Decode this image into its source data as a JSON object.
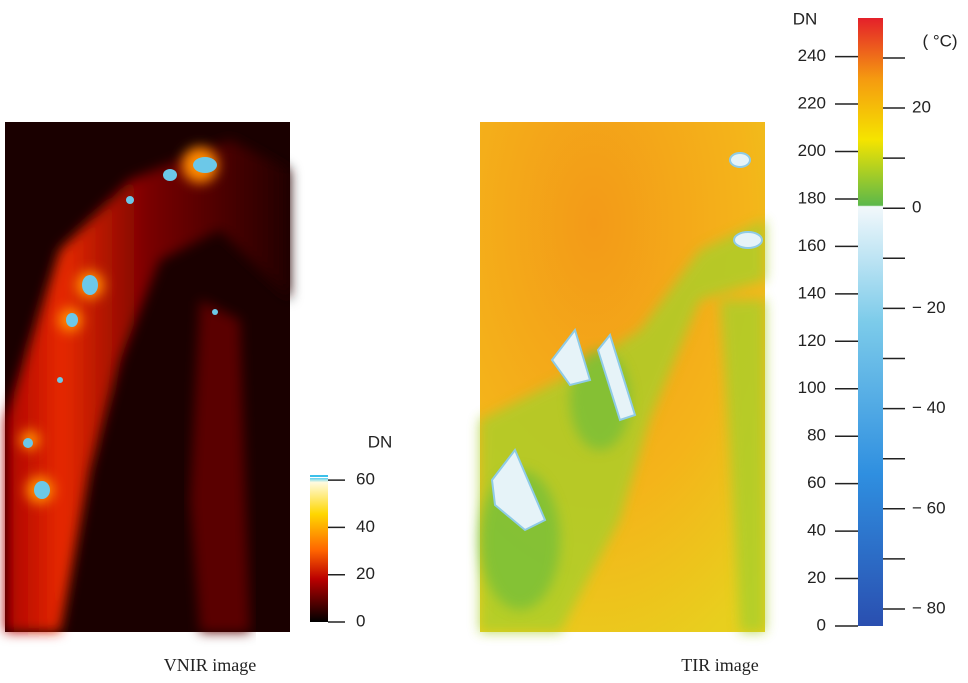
{
  "panels": [
    {
      "caption": "VNIR image",
      "colorbar": {
        "label": "DN",
        "ticks": [
          0,
          20,
          40,
          60
        ]
      }
    },
    {
      "caption": "TIR image",
      "colorbar": {
        "label": "DN",
        "ticks": [
          0,
          20,
          40,
          60,
          80,
          100,
          120,
          140,
          160,
          180,
          200,
          220,
          240
        ],
        "temperature_label": "( °C)",
        "temperature_ticks": [
          "20",
          "0",
          "− 20",
          "− 40",
          "− 60",
          "− 80"
        ]
      }
    }
  ]
}
